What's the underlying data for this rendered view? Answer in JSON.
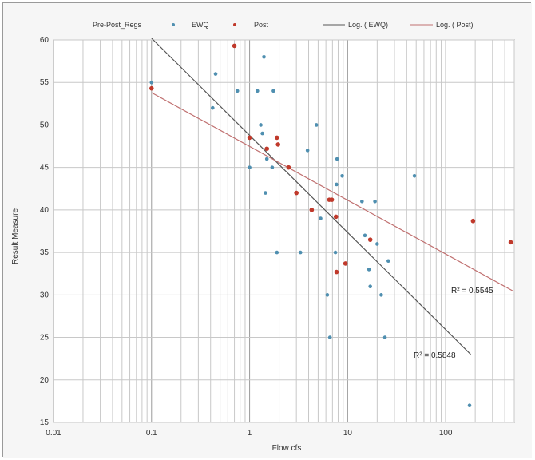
{
  "chart_data": {
    "type": "scatter",
    "title": "",
    "xlabel": "Flow cfs",
    "ylabel": "Result Measure",
    "x_scale": "log",
    "xlim": [
      0.01,
      500
    ],
    "ylim": [
      15,
      60
    ],
    "x_tick_labels": [
      "0.01",
      "0.1",
      "1",
      "10",
      "100"
    ],
    "y_ticks": [
      15,
      20,
      25,
      30,
      35,
      40,
      45,
      50,
      55,
      60
    ],
    "grid": true,
    "legend_position": "top",
    "legend_title": "Pre-Post_Regs",
    "series": [
      {
        "name": "EWQ",
        "color": "#4f8fb0",
        "points": [
          [
            0.1,
            55
          ],
          [
            0.42,
            52
          ],
          [
            0.45,
            56
          ],
          [
            0.75,
            54
          ],
          [
            1.0,
            45
          ],
          [
            1.2,
            54
          ],
          [
            1.3,
            50
          ],
          [
            1.35,
            49
          ],
          [
            1.4,
            58
          ],
          [
            1.45,
            42
          ],
          [
            1.5,
            46
          ],
          [
            1.7,
            45
          ],
          [
            1.75,
            54
          ],
          [
            1.9,
            35
          ],
          [
            2.5,
            45
          ],
          [
            3.3,
            35
          ],
          [
            3.9,
            47
          ],
          [
            4.8,
            50
          ],
          [
            5.3,
            39
          ],
          [
            6.2,
            30
          ],
          [
            6.6,
            25
          ],
          [
            7.5,
            35
          ],
          [
            7.7,
            43
          ],
          [
            7.8,
            46
          ],
          [
            8.8,
            44
          ],
          [
            14,
            41
          ],
          [
            15,
            37
          ],
          [
            16.5,
            33
          ],
          [
            17,
            31
          ],
          [
            19,
            41
          ],
          [
            20,
            36
          ],
          [
            22,
            30
          ],
          [
            24,
            25
          ],
          [
            26,
            34
          ],
          [
            48,
            44
          ],
          [
            175,
            17
          ]
        ]
      },
      {
        "name": "Post",
        "color": "#c0392b",
        "points": [
          [
            0.1,
            54.3
          ],
          [
            0.7,
            59.3
          ],
          [
            1.0,
            48.5
          ],
          [
            1.5,
            47.2
          ],
          [
            1.9,
            48.5
          ],
          [
            1.95,
            47.7
          ],
          [
            2.5,
            45
          ],
          [
            3.0,
            42
          ],
          [
            4.3,
            40
          ],
          [
            6.5,
            41.2
          ],
          [
            6.9,
            41.2
          ],
          [
            7.6,
            39.2
          ],
          [
            7.7,
            32.7
          ],
          [
            9.5,
            33.7
          ],
          [
            17,
            36.5
          ],
          [
            190,
            38.7
          ],
          [
            460,
            36.2
          ]
        ]
      }
    ],
    "trendlines": [
      {
        "name": "Log. ( EWQ)",
        "color": "#555555",
        "type": "logarithmic",
        "from": [
          0.1,
          60.2
        ],
        "to": [
          180,
          23
        ],
        "r2_label": "R² = 0.5848"
      },
      {
        "name": "Log. ( Post)",
        "color": "#c07070",
        "type": "logarithmic",
        "from": [
          0.1,
          53.8
        ],
        "to": [
          480,
          30.5
        ],
        "r2_label": "R² = 0.5545"
      }
    ]
  }
}
